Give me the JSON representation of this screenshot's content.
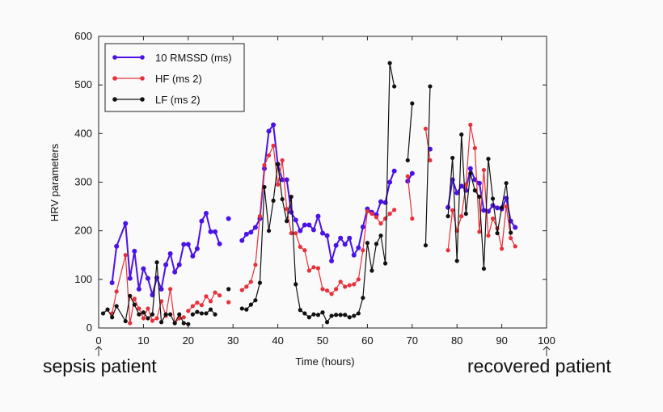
{
  "chart_data": {
    "type": "line",
    "xlabel": "Time (hours)",
    "ylabel": "HRV parameters",
    "xlim": [
      0,
      100
    ],
    "ylim": [
      0,
      600
    ],
    "xticks": [
      0,
      10,
      20,
      30,
      40,
      50,
      60,
      70,
      80,
      90,
      100
    ],
    "yticks": [
      0,
      100,
      200,
      300,
      400,
      500,
      600
    ],
    "legend_position": "top-left",
    "grid": false,
    "series": [
      {
        "name": "10 RMSSD (ms)",
        "color": "#4a12e6",
        "segments": [
          [
            [
              3,
              93
            ],
            [
              4,
              168
            ],
            [
              6,
              215
            ],
            [
              7,
              102
            ],
            [
              8,
              158
            ],
            [
              9,
              80
            ],
            [
              10,
              122
            ],
            [
              11,
              102
            ],
            [
              12,
              68
            ],
            [
              13,
              103
            ],
            [
              14,
              80
            ],
            [
              15,
              130
            ],
            [
              16,
              153
            ],
            [
              17,
              115
            ],
            [
              18,
              130
            ],
            [
              19,
              172
            ],
            [
              20,
              172
            ],
            [
              21,
              148
            ],
            [
              22,
              163
            ],
            [
              23,
              220
            ],
            [
              24,
              236
            ],
            [
              25,
              198
            ],
            [
              26,
              198
            ],
            [
              27,
              173
            ]
          ],
          [
            [
              29,
              225
            ]
          ],
          [
            [
              32,
              180
            ],
            [
              33,
              193
            ],
            [
              34,
              197
            ],
            [
              35,
              207
            ],
            [
              36,
              225
            ],
            [
              37,
              328
            ],
            [
              38,
              405
            ],
            [
              39,
              418
            ],
            [
              40,
              337
            ],
            [
              41,
              305
            ],
            [
              42,
              305
            ],
            [
              43,
              238
            ],
            [
              44,
              222
            ],
            [
              45,
              200
            ],
            [
              46,
              212
            ],
            [
              47,
              212
            ],
            [
              48,
              202
            ],
            [
              49,
              230
            ],
            [
              50,
              195
            ],
            [
              51,
              190
            ],
            [
              52,
              138
            ],
            [
              53,
              170
            ],
            [
              54,
              185
            ],
            [
              55,
              172
            ],
            [
              56,
              185
            ],
            [
              57,
              150
            ],
            [
              58,
              165
            ],
            [
              59,
              208
            ],
            [
              60,
              245
            ],
            [
              61,
              238
            ],
            [
              62,
              233
            ],
            [
              63,
              260
            ],
            [
              64,
              258
            ],
            [
              65,
              300
            ],
            [
              66,
              323
            ]
          ],
          [
            [
              69,
              302
            ],
            [
              70,
              318
            ]
          ],
          [
            [
              74,
              368
            ]
          ],
          [
            [
              78,
              248
            ],
            [
              79,
              305
            ],
            [
              80,
              278
            ],
            [
              81,
              292
            ],
            [
              82,
              283
            ],
            [
              83,
              328
            ],
            [
              84,
              305
            ],
            [
              85,
              298
            ],
            [
              86,
              242
            ],
            [
              87,
              240
            ],
            [
              88,
              252
            ],
            [
              89,
              247
            ],
            [
              90,
              245
            ],
            [
              91,
              267
            ],
            [
              92,
              220
            ],
            [
              93,
              207
            ]
          ]
        ]
      },
      {
        "name": "HF (ms 2)",
        "color": "#e8303a",
        "segments": [
          [
            [
              3,
              30
            ],
            [
              4,
              75
            ],
            [
              6,
              150
            ],
            [
              7,
              10
            ],
            [
              8,
              60
            ],
            [
              9,
              40
            ],
            [
              10,
              20
            ],
            [
              11,
              40
            ],
            [
              12,
              15
            ],
            [
              13,
              20
            ],
            [
              14,
              55
            ],
            [
              15,
              25
            ],
            [
              16,
              80
            ],
            [
              17,
              10
            ],
            [
              18,
              20
            ],
            [
              19,
              22
            ]
          ],
          [
            [
              20,
              35
            ],
            [
              21,
              45
            ],
            [
              22,
              52
            ],
            [
              23,
              47
            ],
            [
              24,
              65
            ],
            [
              25,
              55
            ],
            [
              26,
              73
            ],
            [
              27,
              67
            ]
          ],
          [
            [
              29,
              53
            ]
          ],
          [
            [
              32,
              78
            ],
            [
              33,
              85
            ],
            [
              34,
              95
            ],
            [
              35,
              130
            ],
            [
              36,
              230
            ],
            [
              37,
              335
            ],
            [
              38,
              355
            ],
            [
              39,
              375
            ],
            [
              40,
              295
            ],
            [
              41,
              345
            ],
            [
              42,
              245
            ],
            [
              43,
              195
            ],
            [
              44,
              195
            ],
            [
              45,
              167
            ],
            [
              46,
              160
            ],
            [
              47,
              118
            ],
            [
              48,
              125
            ],
            [
              49,
              123
            ],
            [
              50,
              80
            ],
            [
              51,
              77
            ],
            [
              52,
              70
            ],
            [
              53,
              80
            ],
            [
              54,
              95
            ],
            [
              55,
              85
            ],
            [
              56,
              88
            ],
            [
              57,
              90
            ],
            [
              58,
              100
            ],
            [
              59,
              160
            ],
            [
              60,
              240
            ],
            [
              61,
              235
            ],
            [
              62,
              228
            ],
            [
              63,
              215
            ],
            [
              64,
              225
            ],
            [
              65,
              235
            ],
            [
              66,
              243
            ]
          ],
          [
            [
              69,
              312
            ],
            [
              70,
              225
            ]
          ],
          [
            [
              73,
              410
            ],
            [
              74,
              345
            ]
          ],
          [
            [
              78,
              160
            ],
            [
              79,
              242
            ],
            [
              80,
              200
            ],
            [
              81,
              230
            ],
            [
              82,
              295
            ],
            [
              83,
              418
            ],
            [
              84,
              370
            ],
            [
              85,
              198
            ],
            [
              86,
              325
            ],
            [
              87,
              190
            ],
            [
              88,
              225
            ],
            [
              89,
              205
            ],
            [
              90,
              163
            ],
            [
              91,
              250
            ],
            [
              92,
              185
            ],
            [
              93,
              168
            ]
          ]
        ]
      },
      {
        "name": "LF (ms 2)",
        "color": "#111111",
        "segments": [
          [
            [
              1,
              30
            ],
            [
              2,
              38
            ],
            [
              3,
              22
            ],
            [
              4,
              45
            ],
            [
              6,
              14
            ],
            [
              7,
              66
            ],
            [
              8,
              48
            ],
            [
              9,
              28
            ],
            [
              10,
              32
            ],
            [
              11,
              20
            ],
            [
              12,
              28
            ],
            [
              13,
              135
            ],
            [
              14,
              12
            ],
            [
              15,
              28
            ],
            [
              16,
              28
            ],
            [
              17,
              10
            ],
            [
              18,
              28
            ],
            [
              19,
              10
            ],
            [
              20,
              8
            ]
          ],
          [
            [
              21,
              28
            ],
            [
              22,
              33
            ],
            [
              23,
              30
            ],
            [
              24,
              30
            ],
            [
              25,
              38
            ],
            [
              26,
              28
            ]
          ],
          [
            [
              29,
              80
            ]
          ],
          [
            [
              32,
              40
            ],
            [
              33,
              38
            ],
            [
              34,
              48
            ],
            [
              35,
              57
            ],
            [
              36,
              93
            ],
            [
              37,
              290
            ],
            [
              38,
              200
            ],
            [
              39,
              262
            ],
            [
              40,
              337
            ],
            [
              41,
              265
            ],
            [
              42,
              220
            ],
            [
              43,
              270
            ],
            [
              44,
              90
            ],
            [
              45,
              37
            ],
            [
              46,
              30
            ],
            [
              47,
              22
            ],
            [
              48,
              28
            ],
            [
              49,
              27
            ],
            [
              50,
              32
            ],
            [
              51,
              12
            ],
            [
              52,
              25
            ],
            [
              53,
              27
            ],
            [
              54,
              27
            ],
            [
              55,
              27
            ],
            [
              56,
              22
            ],
            [
              57,
              25
            ],
            [
              58,
              30
            ],
            [
              59,
              62
            ],
            [
              60,
              175
            ],
            [
              61,
              118
            ],
            [
              62,
              173
            ],
            [
              63,
              190
            ],
            [
              64,
              133
            ],
            [
              65,
              545
            ],
            [
              66,
              497
            ]
          ],
          [
            [
              69,
              345
            ],
            [
              70,
              462
            ]
          ],
          [
            [
              73,
              170
            ],
            [
              74,
              497
            ]
          ],
          [
            [
              78,
              230
            ],
            [
              79,
              350
            ],
            [
              80,
              138
            ],
            [
              81,
              398
            ],
            [
              82,
              235
            ],
            [
              83,
              318
            ],
            [
              84,
              283
            ],
            [
              85,
              270
            ],
            [
              86,
              122
            ],
            [
              87,
              348
            ],
            [
              88,
              266
            ],
            [
              89,
              195
            ],
            [
              90,
              248
            ],
            [
              91,
              298
            ],
            [
              92,
              196
            ]
          ]
        ]
      }
    ]
  },
  "captions": {
    "left": "sepsis patient",
    "right": "recovered patient"
  }
}
